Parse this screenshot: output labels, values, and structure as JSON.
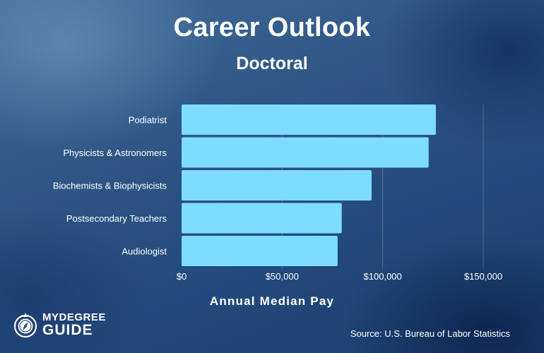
{
  "header": {
    "title": "Career Outlook",
    "subtitle": "Doctoral"
  },
  "chart_data": {
    "type": "bar",
    "orientation": "horizontal",
    "categories": [
      "Podiatrist",
      "Physicists & Astronomers",
      "Biochemists & Biophysicists",
      "Postsecondary Teachers",
      "Audiologist"
    ],
    "values": [
      126440,
      122850,
      94490,
      79640,
      77600
    ],
    "xlabel": "Annual Median Pay",
    "xlim": [
      0,
      150000
    ],
    "xticks": [
      0,
      50000,
      100000,
      150000
    ],
    "xtick_labels": [
      "$0",
      "$50,000",
      "$100,000",
      "$150,000"
    ],
    "grid": "vertical",
    "bar_color": "#7ddcff"
  },
  "footer": {
    "source": "Source: U.S. Bureau of Labor Statistics",
    "logo_top": "MYDEGREE",
    "logo_bottom": "GUIDE"
  }
}
